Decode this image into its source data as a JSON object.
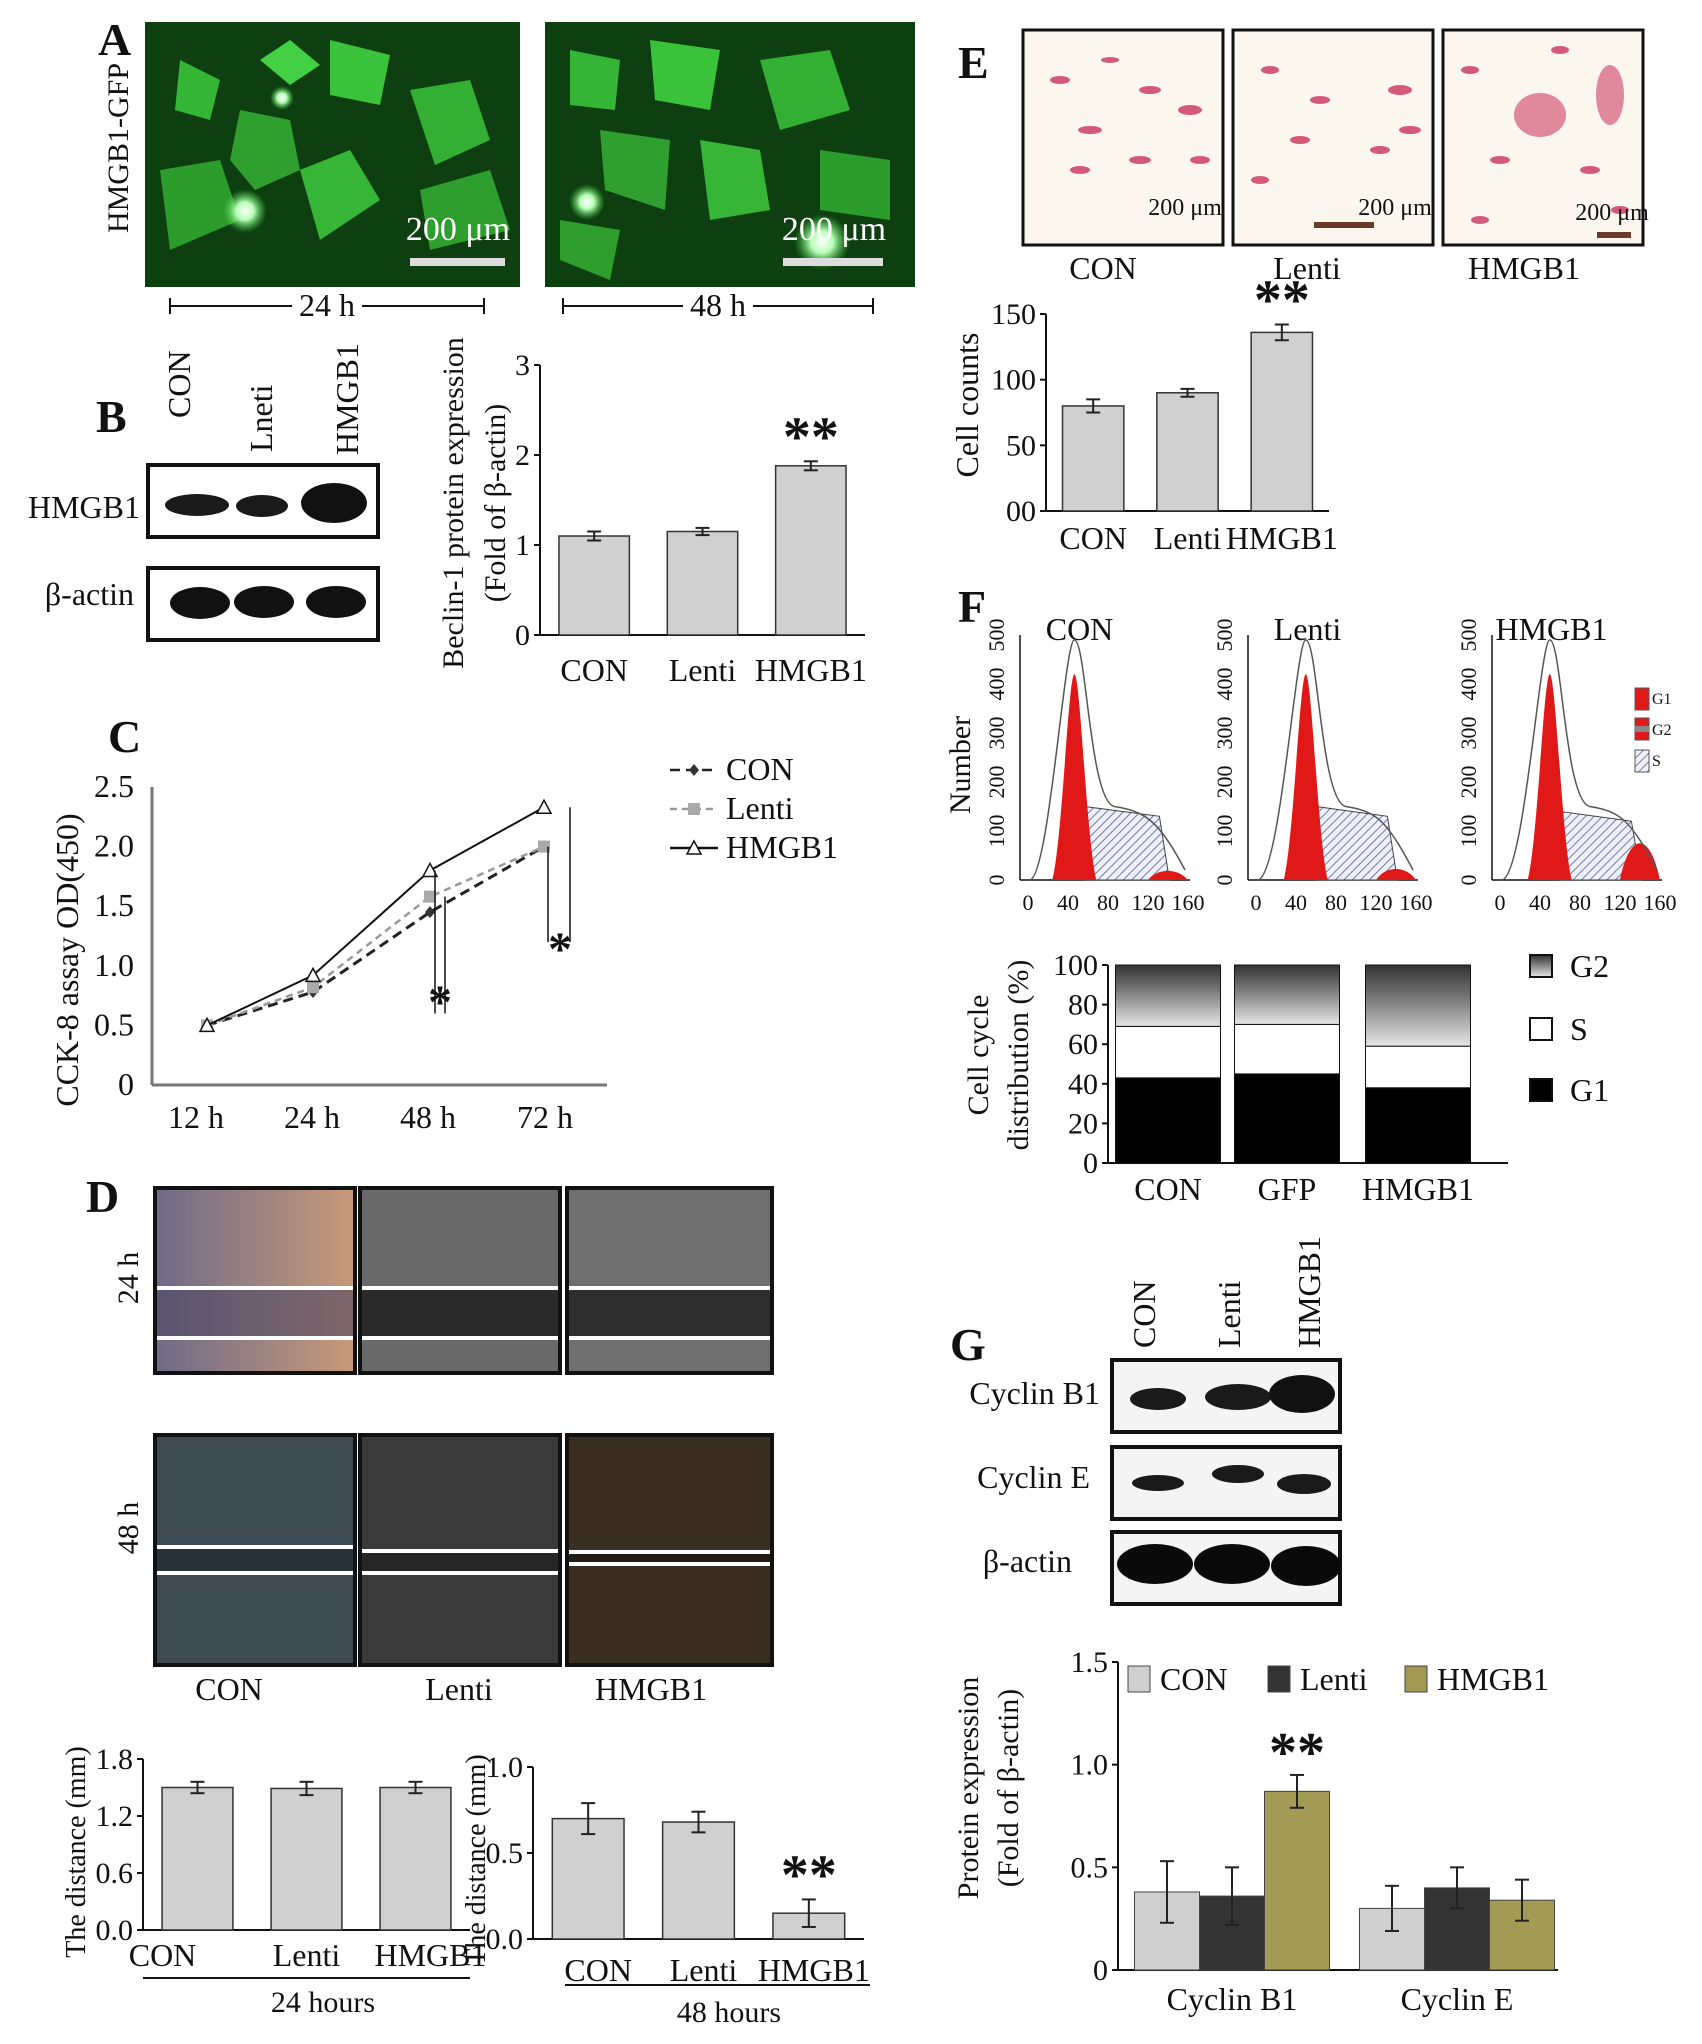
{
  "panels": {
    "A": "A",
    "B": "B",
    "C": "C",
    "D": "D",
    "E": "E",
    "F": "F",
    "G": "G"
  },
  "panelA": {
    "ylabel": "HMGB1-GFP",
    "scale_bar": "200 μm",
    "times": [
      "24 h",
      "48 h"
    ],
    "colors": {
      "bg": "#0c3a0c",
      "cell": "#3fcf3f",
      "bright": "#d8ffd8"
    }
  },
  "panelB": {
    "lanes": [
      "CON",
      "Lneti",
      "HMGB1"
    ],
    "rows": [
      "HMGB1",
      "β-actin"
    ],
    "chart": {
      "ylabel_line1": "Beclin-1  protein expression",
      "ylabel_line2": "(Fold of β-actin)"
    }
  },
  "panelD": {
    "row_labels": [
      "24 h",
      "48 h"
    ],
    "col_labels": [
      "CON",
      "Lenti",
      "HMGB1"
    ],
    "chart24": {
      "ylabel": "The distance  (mm)",
      "xlabel": "24 hours"
    },
    "chart48": {
      "ylabel": "The distance  (mm)",
      "xlabel": "48 hours"
    }
  },
  "panelE": {
    "labels": [
      "CON",
      "Lenti",
      "HMGB1"
    ],
    "scale_bar": "200 μm",
    "chart": {
      "ylabel": "Cell counts"
    }
  },
  "panelF": {
    "hist_titles": [
      "CON",
      "Lenti",
      "HMGB1"
    ],
    "hist_ylabel": "Number",
    "hist_yticks": [
      "0",
      "100",
      "200",
      "300",
      "400",
      "500"
    ],
    "hist_xticks": [
      "0",
      "40",
      "80",
      "120",
      "160"
    ],
    "hist_legend": [
      "G1",
      "G2",
      "S"
    ],
    "chart": {
      "ylabel_line1": "Cell cycle",
      "ylabel_line2": "distribution (%)"
    }
  },
  "panelG": {
    "lanes": [
      "CON",
      "Lenti",
      "HMGB1"
    ],
    "rows": [
      "Cyclin B1",
      "Cyclin E",
      "β-actin"
    ],
    "chart": {
      "ylabel_line1": "Protein expression",
      "ylabel_line2": "(Fold of β-actin)"
    }
  },
  "chart_data": [
    {
      "id": "beclin",
      "type": "bar",
      "categories": [
        "CON",
        "Lenti",
        "HMGB1"
      ],
      "values": [
        1.1,
        1.15,
        1.88
      ],
      "errors": [
        0.05,
        0.04,
        0.05
      ],
      "yticks": [
        "0",
        "1",
        "2",
        "3"
      ],
      "ylim": [
        0,
        3
      ],
      "significance": [
        "",
        "",
        "**"
      ]
    },
    {
      "id": "cck8",
      "type": "line",
      "ylabel": "CCK-8 assay OD(450)",
      "categories": [
        "12 h",
        "24 h",
        "48 h",
        "72 h"
      ],
      "yticks": [
        "0",
        "0.5",
        "1.0",
        "1.5",
        "2.0",
        "2.5"
      ],
      "ylim": [
        0,
        2.5
      ],
      "series": [
        {
          "name": "CON",
          "values": [
            0.5,
            0.78,
            1.45,
            2.0
          ],
          "color": "#222222"
        },
        {
          "name": "Lenti",
          "values": [
            0.5,
            0.82,
            1.58,
            2.0
          ],
          "color": "#999999"
        },
        {
          "name": "HMGB1",
          "values": [
            0.5,
            0.92,
            1.8,
            2.33
          ],
          "color": "#111111"
        }
      ],
      "annotations": [
        "*",
        "*"
      ]
    },
    {
      "id": "distance24",
      "type": "bar",
      "categories": [
        "CON",
        "Lenti",
        "HMGB1"
      ],
      "values": [
        1.5,
        1.49,
        1.5
      ],
      "errors": [
        0.06,
        0.07,
        0.06
      ],
      "yticks": [
        "0.0",
        "0.6",
        "1.2",
        "1.8"
      ],
      "ylim": [
        0,
        1.8
      ]
    },
    {
      "id": "distance48",
      "type": "bar",
      "categories": [
        "CON",
        "Lenti",
        "HMGB1"
      ],
      "values": [
        0.7,
        0.68,
        0.15
      ],
      "errors": [
        0.09,
        0.06,
        0.08
      ],
      "yticks": [
        "0.0",
        "0.5",
        "1.0"
      ],
      "ylim": [
        0,
        1.0
      ],
      "significance": [
        "",
        "",
        "**"
      ]
    },
    {
      "id": "cellcounts",
      "type": "bar",
      "categories": [
        "CON",
        "Lenti",
        "HMGB1"
      ],
      "values": [
        80,
        90,
        136
      ],
      "errors": [
        5,
        3,
        6
      ],
      "yticks": [
        "00",
        "50",
        "100",
        "150"
      ],
      "ylim": [
        0,
        150
      ],
      "significance": [
        "",
        "",
        "**"
      ]
    },
    {
      "id": "cellcycle",
      "type": "bar",
      "categories": [
        "CON",
        "GFP",
        "HMGB1"
      ],
      "yticks": [
        "0",
        "20",
        "40",
        "60",
        "80",
        "100"
      ],
      "ylim": [
        0,
        100
      ],
      "series": [
        {
          "name": "G1",
          "values": [
            43,
            45,
            38
          ],
          "color": "#000000"
        },
        {
          "name": "S",
          "values": [
            26,
            25,
            21
          ],
          "color": "#ffffff"
        },
        {
          "name": "G2",
          "values": [
            31,
            30,
            41
          ],
          "color": "#777777"
        }
      ]
    },
    {
      "id": "protein",
      "type": "bar",
      "categories": [
        "Cyclin B1",
        "Cyclin E"
      ],
      "yticks": [
        "0",
        "0.5",
        "1.0",
        "1.5"
      ],
      "ylim": [
        0,
        1.5
      ],
      "series": [
        {
          "name": "CON",
          "values": [
            0.38,
            0.3
          ],
          "errors": [
            0.15,
            0.11
          ],
          "color": "#cfcfcf"
        },
        {
          "name": "Lenti",
          "values": [
            0.36,
            0.4
          ],
          "errors": [
            0.14,
            0.1
          ],
          "color": "#333333"
        },
        {
          "name": "HMGB1",
          "values": [
            0.87,
            0.34
          ],
          "errors": [
            0.08,
            0.1
          ],
          "color": "#a29a55"
        }
      ],
      "significance": [
        "**",
        ""
      ]
    }
  ]
}
